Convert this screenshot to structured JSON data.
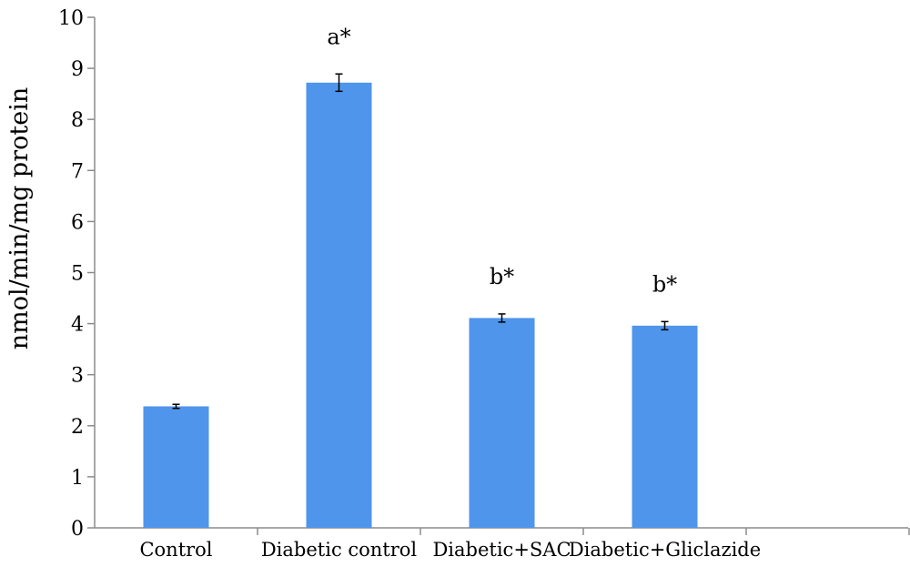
{
  "chart_data": {
    "type": "bar",
    "categories": [
      "Control",
      "Diabetic control",
      "Diabetic+SAC",
      "Diabetic+Gliclazide"
    ],
    "values": [
      2.38,
      8.72,
      4.11,
      3.96
    ],
    "errors": [
      0.04,
      0.17,
      0.08,
      0.08
    ],
    "annotations": [
      "",
      "a*",
      "b*",
      "b*"
    ],
    "title": "",
    "xlabel": "",
    "ylabel": "nmol/min/mg protein",
    "ylim": [
      0,
      10
    ],
    "yticks": [
      "0",
      "1",
      "2",
      "3",
      "4",
      "5",
      "6",
      "7",
      "8",
      "9",
      "10"
    ],
    "grid": false,
    "legend": "none",
    "bar_color": "#4f95ec",
    "axis_color": "#8c8c8c"
  }
}
